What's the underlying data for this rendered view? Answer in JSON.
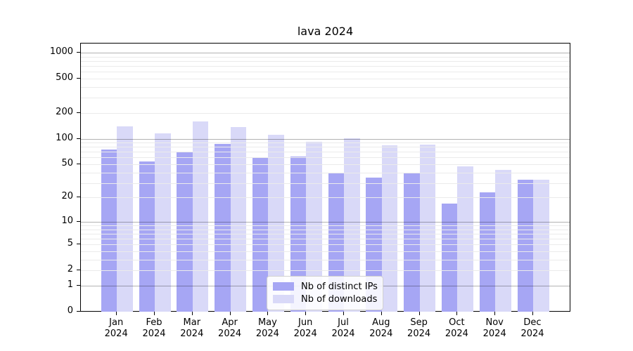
{
  "chart_data": {
    "type": "bar",
    "title": "lava 2024",
    "categories": [
      "Jan",
      "Feb",
      "Mar",
      "Apr",
      "May",
      "Jun",
      "Jul",
      "Aug",
      "Sep",
      "Oct",
      "Nov",
      "Dec"
    ],
    "year_label": "2024",
    "series": [
      {
        "name": "Nb of distinct IPs",
        "color": "#a6a6f4",
        "values": [
          75,
          54,
          69,
          86,
          60,
          62,
          39,
          35,
          39,
          17,
          23,
          33
        ]
      },
      {
        "name": "Nb of downloads",
        "color": "#d9d9f8",
        "values": [
          140,
          115,
          160,
          136,
          111,
          92,
          101,
          83,
          85,
          47,
          43,
          33
        ]
      }
    ],
    "y_axis": {
      "scale": "log1p",
      "ticks": [
        0,
        1,
        2,
        5,
        10,
        20,
        50,
        100,
        200,
        500,
        1000
      ],
      "major_gridlines": [
        1,
        10,
        100,
        1000
      ],
      "minor_gridlines": [
        2,
        3,
        4,
        5,
        6,
        7,
        8,
        9,
        20,
        30,
        40,
        50,
        60,
        70,
        80,
        90,
        200,
        300,
        400,
        500,
        600,
        700,
        800,
        900
      ],
      "ylim": [
        0,
        1000
      ],
      "grid": true
    },
    "legend": {
      "position": "lower center"
    }
  }
}
